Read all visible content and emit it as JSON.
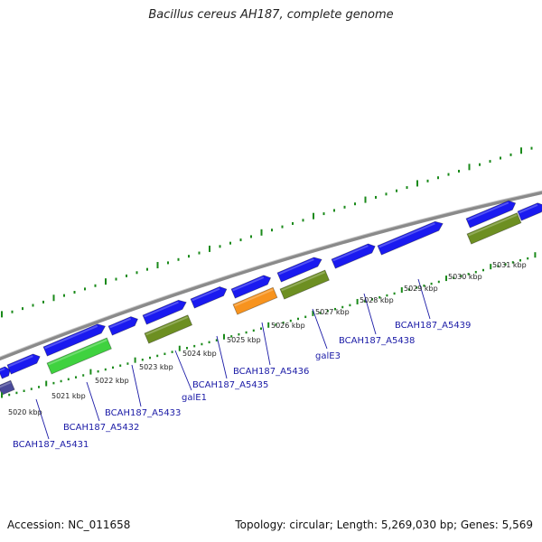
{
  "title": "Bacillus cereus AH187, complete genome",
  "footer": {
    "accession": "Accession: NC_011658",
    "topology": "Topology: circular; Length: 5,269,030 bp; Genes: 5,569"
  },
  "colors": {
    "cds_blue": "#1a1af0",
    "cds_green": "#3fd23f",
    "cds_olive": "#6d8f22",
    "cds_orange": "#f7931e",
    "cds_slate": "#4a4a9a",
    "backbone": "#8a8a8a",
    "tick_green": "#1a8a1a",
    "label_blue": "#1a1aa6"
  },
  "tick_labels": [
    "5020 kbp",
    "5021 kbp",
    "5022 kbp",
    "5023 kbp",
    "5024 kbp",
    "5025 kbp",
    "5026 kbp",
    "5027 kbp",
    "5028 kbp",
    "5029 kbp",
    "5030 kbp",
    "5031 kbp"
  ],
  "gene_labels": [
    "BCAH187_A5431",
    "BCAH187_A5432",
    "BCAH187_A5433",
    "galE1",
    "BCAH187_A5435",
    "BCAH187_A5436",
    "galE3",
    "BCAH187_A5438",
    "BCAH187_A5439"
  ],
  "genes": [
    {
      "track": "outer",
      "color": "blue"
    },
    {
      "track": "outer",
      "color": "blue"
    },
    {
      "track": "outer",
      "color": "blue"
    },
    {
      "track": "outer",
      "color": "blue"
    },
    {
      "track": "outer",
      "color": "blue"
    },
    {
      "track": "outer",
      "color": "blue"
    },
    {
      "track": "outer",
      "color": "blue"
    },
    {
      "track": "outer",
      "color": "blue"
    },
    {
      "track": "outer",
      "color": "blue"
    },
    {
      "track": "outer",
      "color": "blue"
    },
    {
      "track": "outer",
      "color": "blue"
    },
    {
      "track": "outer",
      "color": "blue"
    },
    {
      "track": "inner",
      "color": "slate"
    },
    {
      "track": "inner",
      "color": "green"
    },
    {
      "track": "inner",
      "color": "olive"
    },
    {
      "track": "inner",
      "color": "orange"
    },
    {
      "track": "inner",
      "color": "olive"
    },
    {
      "track": "inner",
      "color": "olive"
    }
  ]
}
